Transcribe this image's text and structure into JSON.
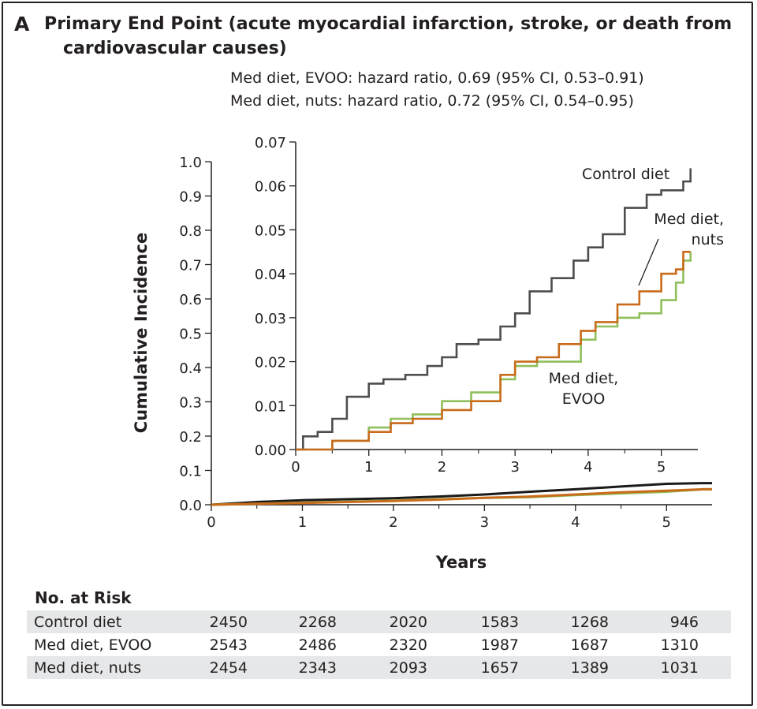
{
  "panel_label": "A",
  "title_line1": "Primary End Point (acute myocardial infarction, stroke, or death from",
  "title_line2": "cardiovascular causes)",
  "stats": [
    "Med diet, EVOO: hazard ratio, 0.69 (95% CI, 0.53–0.91)",
    "Med diet, nuts: hazard ratio, 0.72 (95% CI, 0.54–0.95)"
  ],
  "colors": {
    "control": "#4d4d4f",
    "control_main": "#1a1a1a",
    "evoo": "#8fbf5a",
    "nuts": "#c86b1a",
    "risk_row_shade": "#e6e7e8"
  },
  "chart_data": [
    {
      "type": "line",
      "panel": "main",
      "xlabel": "Years",
      "ylabel": "Cumulative Incidence",
      "xlim": [
        0,
        5.5
      ],
      "ylim": [
        0,
        1.0
      ],
      "x_ticks": [
        "0",
        "1",
        "2",
        "3",
        "4",
        "5"
      ],
      "y_ticks": [
        "0.0",
        "0.1",
        "0.2",
        "0.3",
        "0.4",
        "0.5",
        "0.6",
        "0.7",
        "0.8",
        "0.9",
        "1.0"
      ],
      "series": [
        {
          "name": "Control diet",
          "x": [
            0,
            0.5,
            1,
            1.5,
            2,
            2.5,
            3,
            3.5,
            4,
            4.5,
            5,
            5.4,
            5.5
          ],
          "y": [
            0,
            0.008,
            0.013,
            0.016,
            0.019,
            0.024,
            0.03,
            0.038,
            0.045,
            0.053,
            0.061,
            0.063,
            0.063
          ]
        },
        {
          "name": "Med diet, EVOO",
          "x": [
            0,
            0.5,
            1,
            1.5,
            2,
            2.5,
            3,
            3.5,
            4,
            4.5,
            5,
            5.4,
            5.5
          ],
          "y": [
            0,
            0.003,
            0.006,
            0.009,
            0.012,
            0.016,
            0.02,
            0.022,
            0.028,
            0.033,
            0.038,
            0.045,
            0.045
          ]
        },
        {
          "name": "Med diet, nuts",
          "x": [
            0,
            0.5,
            1,
            1.5,
            2,
            2.5,
            3,
            3.5,
            4,
            4.5,
            5,
            5.4,
            5.5
          ],
          "y": [
            0,
            0.003,
            0.005,
            0.008,
            0.011,
            0.015,
            0.02,
            0.024,
            0.03,
            0.036,
            0.041,
            0.045,
            0.045
          ]
        }
      ]
    },
    {
      "type": "line",
      "panel": "inset",
      "xlim": [
        0,
        5.5
      ],
      "ylim": [
        0,
        0.07
      ],
      "x_ticks": [
        "0",
        "1",
        "2",
        "3",
        "4",
        "5"
      ],
      "y_ticks": [
        "0.00",
        "0.01",
        "0.02",
        "0.03",
        "0.04",
        "0.05",
        "0.06",
        "0.07"
      ],
      "annotations": [
        {
          "series": "Control diet",
          "lines": [
            "Control diet"
          ]
        },
        {
          "series": "Med diet, nuts",
          "lines": [
            "Med diet,",
            "nuts"
          ]
        },
        {
          "series": "Med diet, EVOO",
          "lines": [
            "Med diet,",
            "EVOO"
          ]
        }
      ],
      "series": [
        {
          "name": "Control diet",
          "x": [
            0,
            0.1,
            0.3,
            0.5,
            0.7,
            1.0,
            1.2,
            1.5,
            1.8,
            2.0,
            2.2,
            2.5,
            2.8,
            3.0,
            3.2,
            3.5,
            3.8,
            4.0,
            4.2,
            4.5,
            4.8,
            5.0,
            5.3,
            5.4
          ],
          "y": [
            0,
            0.003,
            0.004,
            0.007,
            0.012,
            0.015,
            0.016,
            0.017,
            0.019,
            0.021,
            0.024,
            0.025,
            0.028,
            0.031,
            0.036,
            0.039,
            0.043,
            0.046,
            0.049,
            0.055,
            0.058,
            0.059,
            0.061,
            0.064
          ]
        },
        {
          "name": "Med diet, EVOO",
          "x": [
            0,
            0.5,
            1.0,
            1.3,
            1.6,
            2.0,
            2.4,
            2.8,
            3.0,
            3.3,
            3.6,
            3.9,
            4.1,
            4.4,
            4.7,
            5.0,
            5.2,
            5.3,
            5.4
          ],
          "y": [
            0,
            0.002,
            0.005,
            0.007,
            0.008,
            0.011,
            0.013,
            0.016,
            0.019,
            0.02,
            0.02,
            0.025,
            0.028,
            0.03,
            0.031,
            0.034,
            0.038,
            0.043,
            0.045
          ]
        },
        {
          "name": "Med diet, nuts",
          "x": [
            0,
            0.5,
            1.0,
            1.3,
            1.6,
            2.0,
            2.4,
            2.8,
            3.0,
            3.3,
            3.6,
            3.9,
            4.1,
            4.4,
            4.7,
            5.0,
            5.2,
            5.3,
            5.4
          ],
          "y": [
            0,
            0.002,
            0.004,
            0.006,
            0.007,
            0.009,
            0.011,
            0.017,
            0.02,
            0.021,
            0.024,
            0.027,
            0.029,
            0.033,
            0.036,
            0.04,
            0.041,
            0.045,
            0.045
          ]
        }
      ]
    }
  ],
  "risk_table": {
    "heading": "No. at Risk",
    "rows": [
      {
        "label": "Control diet",
        "values": [
          "2450",
          "2268",
          "2020",
          "1583",
          "1268",
          "946"
        ]
      },
      {
        "label": "Med diet, EVOO",
        "values": [
          "2543",
          "2486",
          "2320",
          "1987",
          "1687",
          "1310"
        ]
      },
      {
        "label": "Med diet, nuts",
        "values": [
          "2454",
          "2343",
          "2093",
          "1657",
          "1389",
          "1031"
        ]
      }
    ]
  }
}
